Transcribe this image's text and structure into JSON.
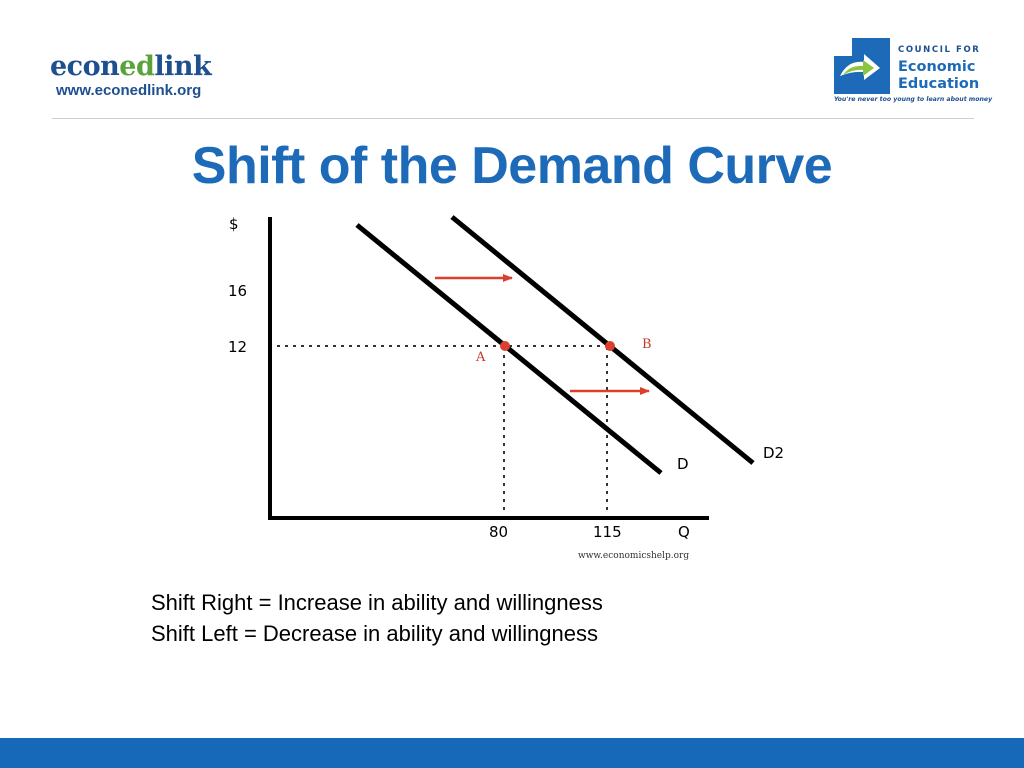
{
  "header": {
    "left_logo": {
      "brand_parts": [
        {
          "text": "econ",
          "color": "#1d4f91"
        },
        {
          "text": "ed",
          "color": "#5aa33b"
        },
        {
          "text": "link",
          "color": "#1d4f91"
        }
      ],
      "url": "www.econedlink.org"
    },
    "right_logo": {
      "line1": "COUNCIL FOR",
      "line2": "Economic",
      "line3": "Education",
      "tagline": "You're never too young to learn about money"
    }
  },
  "title": "Shift of the Demand Curve",
  "diagram": {
    "y_axis_label": "$",
    "x_axis_label": "Q",
    "y_ticks": [
      "16",
      "12"
    ],
    "x_ticks": [
      "80",
      "115"
    ],
    "point_labels": [
      "A",
      "B"
    ],
    "curve_labels": [
      "D",
      "D2"
    ],
    "watermark": "www.economicshelp.org",
    "colors": {
      "curves": "#000000",
      "arrows": "#d9402e",
      "points": "#d9402e"
    }
  },
  "caption": {
    "line1": "Shift Right = Increase in ability and willingness",
    "line2": "Shift Left = Decrease in ability and willingness"
  },
  "colors": {
    "title": "#1d6bb8",
    "bottom_bar": "#1669b9"
  }
}
